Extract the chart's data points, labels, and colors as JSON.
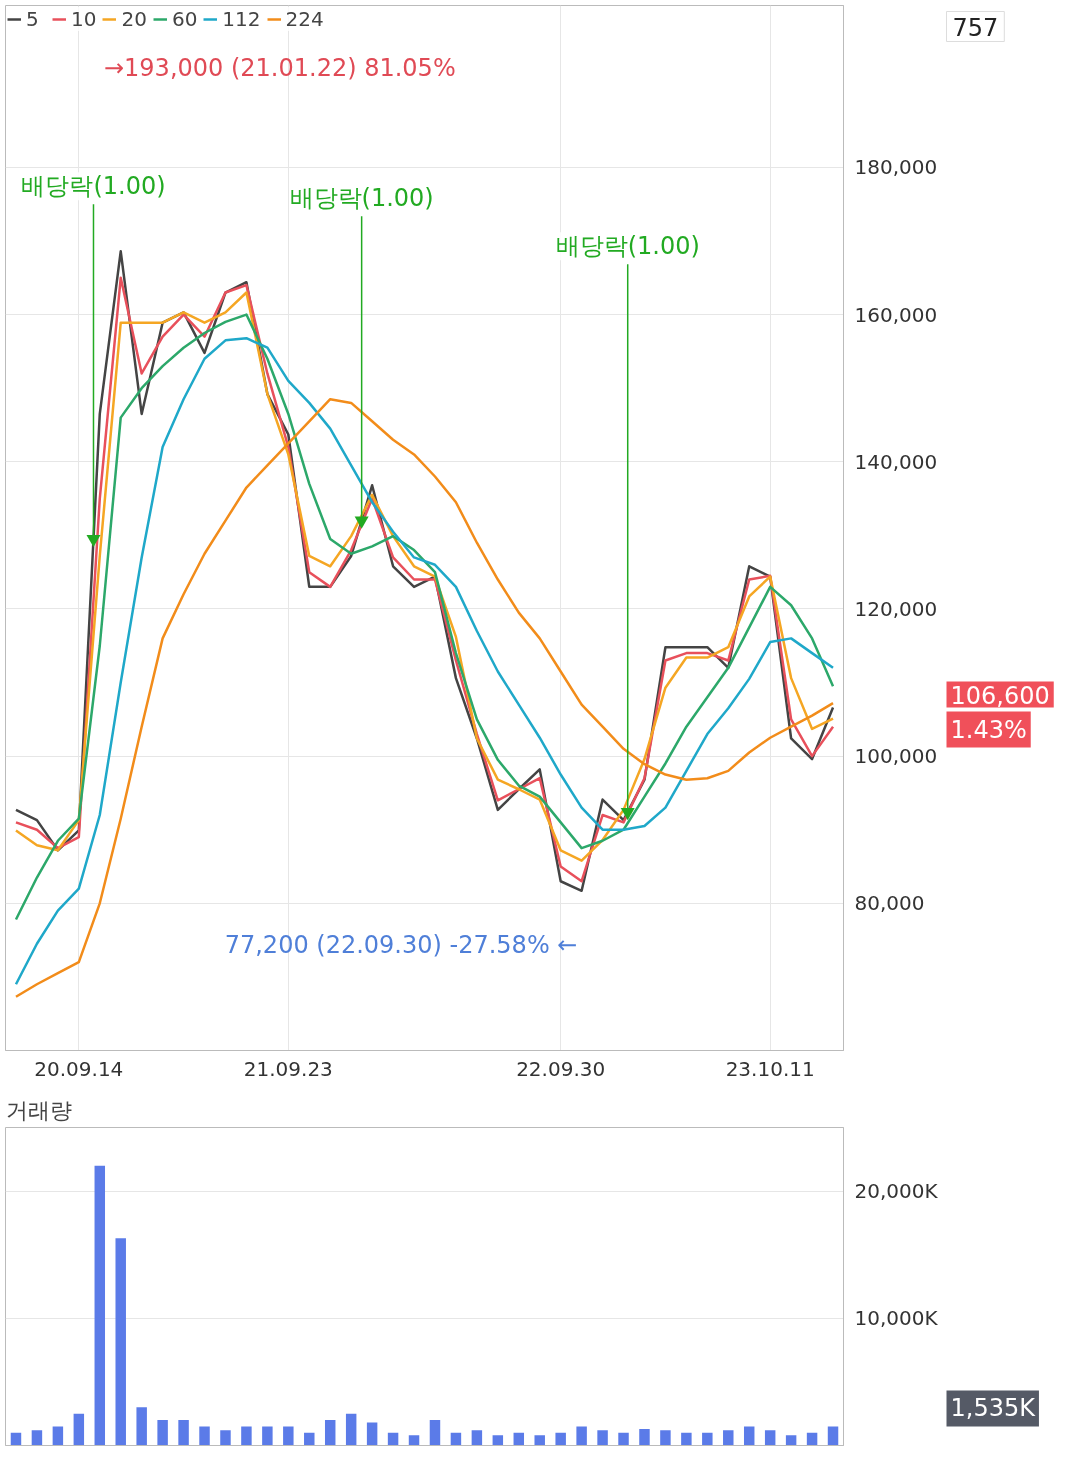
{
  "chart_data": [
    {
      "type": "line",
      "categories": [
        null,
        null,
        null,
        "20.09.14",
        null,
        null,
        null,
        null,
        null,
        null,
        null,
        null,
        null,
        "21.09.23",
        null,
        null,
        null,
        null,
        null,
        null,
        null,
        null,
        null,
        null,
        null,
        null,
        "22.09.30",
        null,
        null,
        null,
        null,
        null,
        null,
        null,
        null,
        null,
        "23.10.11",
        null,
        null,
        null
      ],
      "ylim": [
        60000,
        202000
      ],
      "yticks": [
        {
          "value": 80000,
          "label": "80,000"
        },
        {
          "value": 100000,
          "label": "100,000"
        },
        {
          "value": 120000,
          "label": "120,000"
        },
        {
          "value": 140000,
          "label": "140,000"
        },
        {
          "value": 160000,
          "label": "160,000"
        },
        {
          "value": 180000,
          "label": "180,000"
        }
      ],
      "grid": true,
      "legend": "top left",
      "series": [
        {
          "name": "5",
          "color": "#444444",
          "values": [
            92700,
            91300,
            87200,
            89900,
            146500,
            168600,
            146500,
            158900,
            160300,
            154800,
            163000,
            164400,
            149200,
            143700,
            123000,
            123000,
            127200,
            136800,
            125800,
            123000,
            124400,
            110600,
            102400,
            92700,
            95500,
            98200,
            83000,
            81700,
            94100,
            91300,
            96800,
            114800,
            114800,
            114800,
            112000,
            125800,
            124400,
            102400,
            99600,
            106600
          ]
        },
        {
          "name": "10",
          "color": "#e8505b",
          "values": [
            91000,
            90000,
            87500,
            89000,
            135000,
            165000,
            152000,
            157000,
            160000,
            157000,
            163000,
            164000,
            152000,
            142000,
            125000,
            123000,
            128000,
            135000,
            127000,
            124000,
            124000,
            113000,
            103000,
            94000,
            95500,
            97000,
            85000,
            83000,
            92000,
            91000,
            97000,
            113000,
            114000,
            114000,
            113000,
            124000,
            124500,
            105000,
            100000,
            104000
          ]
        },
        {
          "name": "20",
          "color": "#f5a623",
          "values": [
            89900,
            87900,
            87200,
            91300,
            127200,
            158900,
            158900,
            158900,
            160300,
            158900,
            160300,
            163000,
            149200,
            141000,
            127200,
            125800,
            129900,
            135500,
            129900,
            125800,
            124400,
            116200,
            102400,
            96800,
            95500,
            94100,
            87200,
            85800,
            88600,
            92700,
            99600,
            109300,
            113400,
            113400,
            114800,
            121700,
            124400,
            110600,
            103700,
            105100
          ]
        },
        {
          "name": "60",
          "color": "#2ca86a",
          "values": [
            77800,
            83500,
            88500,
            91500,
            115000,
            146000,
            150000,
            153000,
            155500,
            157500,
            159000,
            160000,
            154000,
            146500,
            137000,
            129500,
            127500,
            128500,
            129900,
            128000,
            125000,
            114000,
            105000,
            99500,
            96000,
            94500,
            91000,
            87500,
            88500,
            90000,
            94500,
            99000,
            104000,
            108000,
            112000,
            117500,
            123000,
            120500,
            116000,
            109500
          ]
        },
        {
          "name": "112",
          "color": "#1fa8c9",
          "values": [
            69000,
            74500,
            79000,
            82000,
            92000,
            110000,
            127000,
            142000,
            148500,
            154000,
            156500,
            156800,
            155500,
            151000,
            148000,
            144500,
            139500,
            134500,
            130500,
            127000,
            126000,
            123000,
            117000,
            111500,
            107000,
            102500,
            97500,
            93000,
            90000,
            90000,
            90500,
            93000,
            98000,
            103000,
            106500,
            110500,
            115500,
            116000,
            114000,
            112000
          ]
        },
        {
          "name": "224",
          "color": "#f28c1a",
          "values": [
            67300,
            69000,
            70500,
            72000,
            80000,
            91500,
            104000,
            116000,
            122000,
            127500,
            132000,
            136500,
            139500,
            142500,
            145500,
            148500,
            148000,
            145500,
            143000,
            141000,
            138000,
            134500,
            129000,
            124000,
            119500,
            116000,
            111500,
            107000,
            104000,
            101000,
            98900,
            97500,
            96800,
            97000,
            98000,
            100500,
            102500,
            104000,
            105500,
            107200
          ]
        }
      ],
      "annotations": [
        "→193,000 (21.01.22) 81.05%",
        "77,200 (22.09.30) -27.58% ←",
        {
          "text": "배당락(1.00)",
          "y": 129500
        },
        {
          "text": "배당락(1.00)",
          "y": 132000
        },
        {
          "text": "배당락(1.00)",
          "y": 92400
        },
        "106,600",
        "1.43%",
        "757"
      ]
    },
    {
      "type": "bar",
      "title": "거래량",
      "categories": [
        null,
        null,
        null,
        null,
        null,
        null,
        null,
        null,
        null,
        null,
        null,
        null,
        null,
        null,
        null,
        null,
        null,
        null,
        null,
        null,
        null,
        null,
        null,
        null,
        null,
        null,
        null,
        null,
        null,
        null,
        null,
        null,
        null,
        null,
        null,
        null,
        null,
        null,
        null,
        null
      ],
      "ylim": [
        0,
        25000
      ],
      "yticks": [
        {
          "value": 10000,
          "label": "10,000K"
        },
        {
          "value": 20000,
          "label": "20,000K"
        }
      ],
      "grid": true,
      "series": [
        {
          "color": "#5b7be8",
          "values": [
            1000,
            1200,
            1500,
            2500,
            22000,
            16300,
            3000,
            2000,
            2000,
            1500,
            1200,
            1500,
            1500,
            1500,
            1000,
            2000,
            2500,
            1800,
            1000,
            800,
            2000,
            1000,
            1200,
            800,
            1000,
            800,
            1000,
            1500,
            1200,
            1000,
            1300,
            1200,
            1000,
            1000,
            1200,
            1500,
            1200,
            800,
            1000,
            1500
          ]
        }
      ],
      "annotations": [
        "1,535K"
      ]
    }
  ]
}
